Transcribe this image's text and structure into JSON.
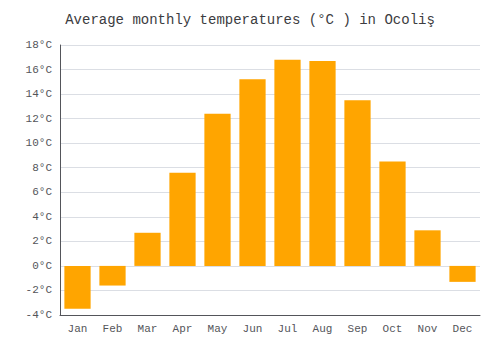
{
  "chart_data": {
    "type": "bar",
    "title": "Average monthly temperatures (°C ) in Ocoliş",
    "categories": [
      "Jan",
      "Feb",
      "Mar",
      "Apr",
      "May",
      "Jun",
      "Jul",
      "Aug",
      "Sep",
      "Oct",
      "Nov",
      "Dec"
    ],
    "values": [
      -3.5,
      -1.6,
      2.7,
      7.6,
      12.4,
      15.2,
      16.8,
      16.7,
      13.5,
      8.5,
      2.9,
      -1.3
    ],
    "color": "#FFA500",
    "ylim": [
      -4,
      18
    ],
    "yticks": [
      {
        "value": -4,
        "label": "-4°C"
      },
      {
        "value": -2,
        "label": "-2°C"
      },
      {
        "value": 0,
        "label": "0°C"
      },
      {
        "value": 2,
        "label": "2°C"
      },
      {
        "value": 4,
        "label": "4°C"
      },
      {
        "value": 6,
        "label": "6°C"
      },
      {
        "value": 8,
        "label": "8°C"
      },
      {
        "value": 10,
        "label": "10°C"
      },
      {
        "value": 12,
        "label": "12°C"
      },
      {
        "value": 14,
        "label": "14°C"
      },
      {
        "value": 16,
        "label": "16°C"
      },
      {
        "value": 18,
        "label": "18°C"
      }
    ],
    "grid": true
  }
}
